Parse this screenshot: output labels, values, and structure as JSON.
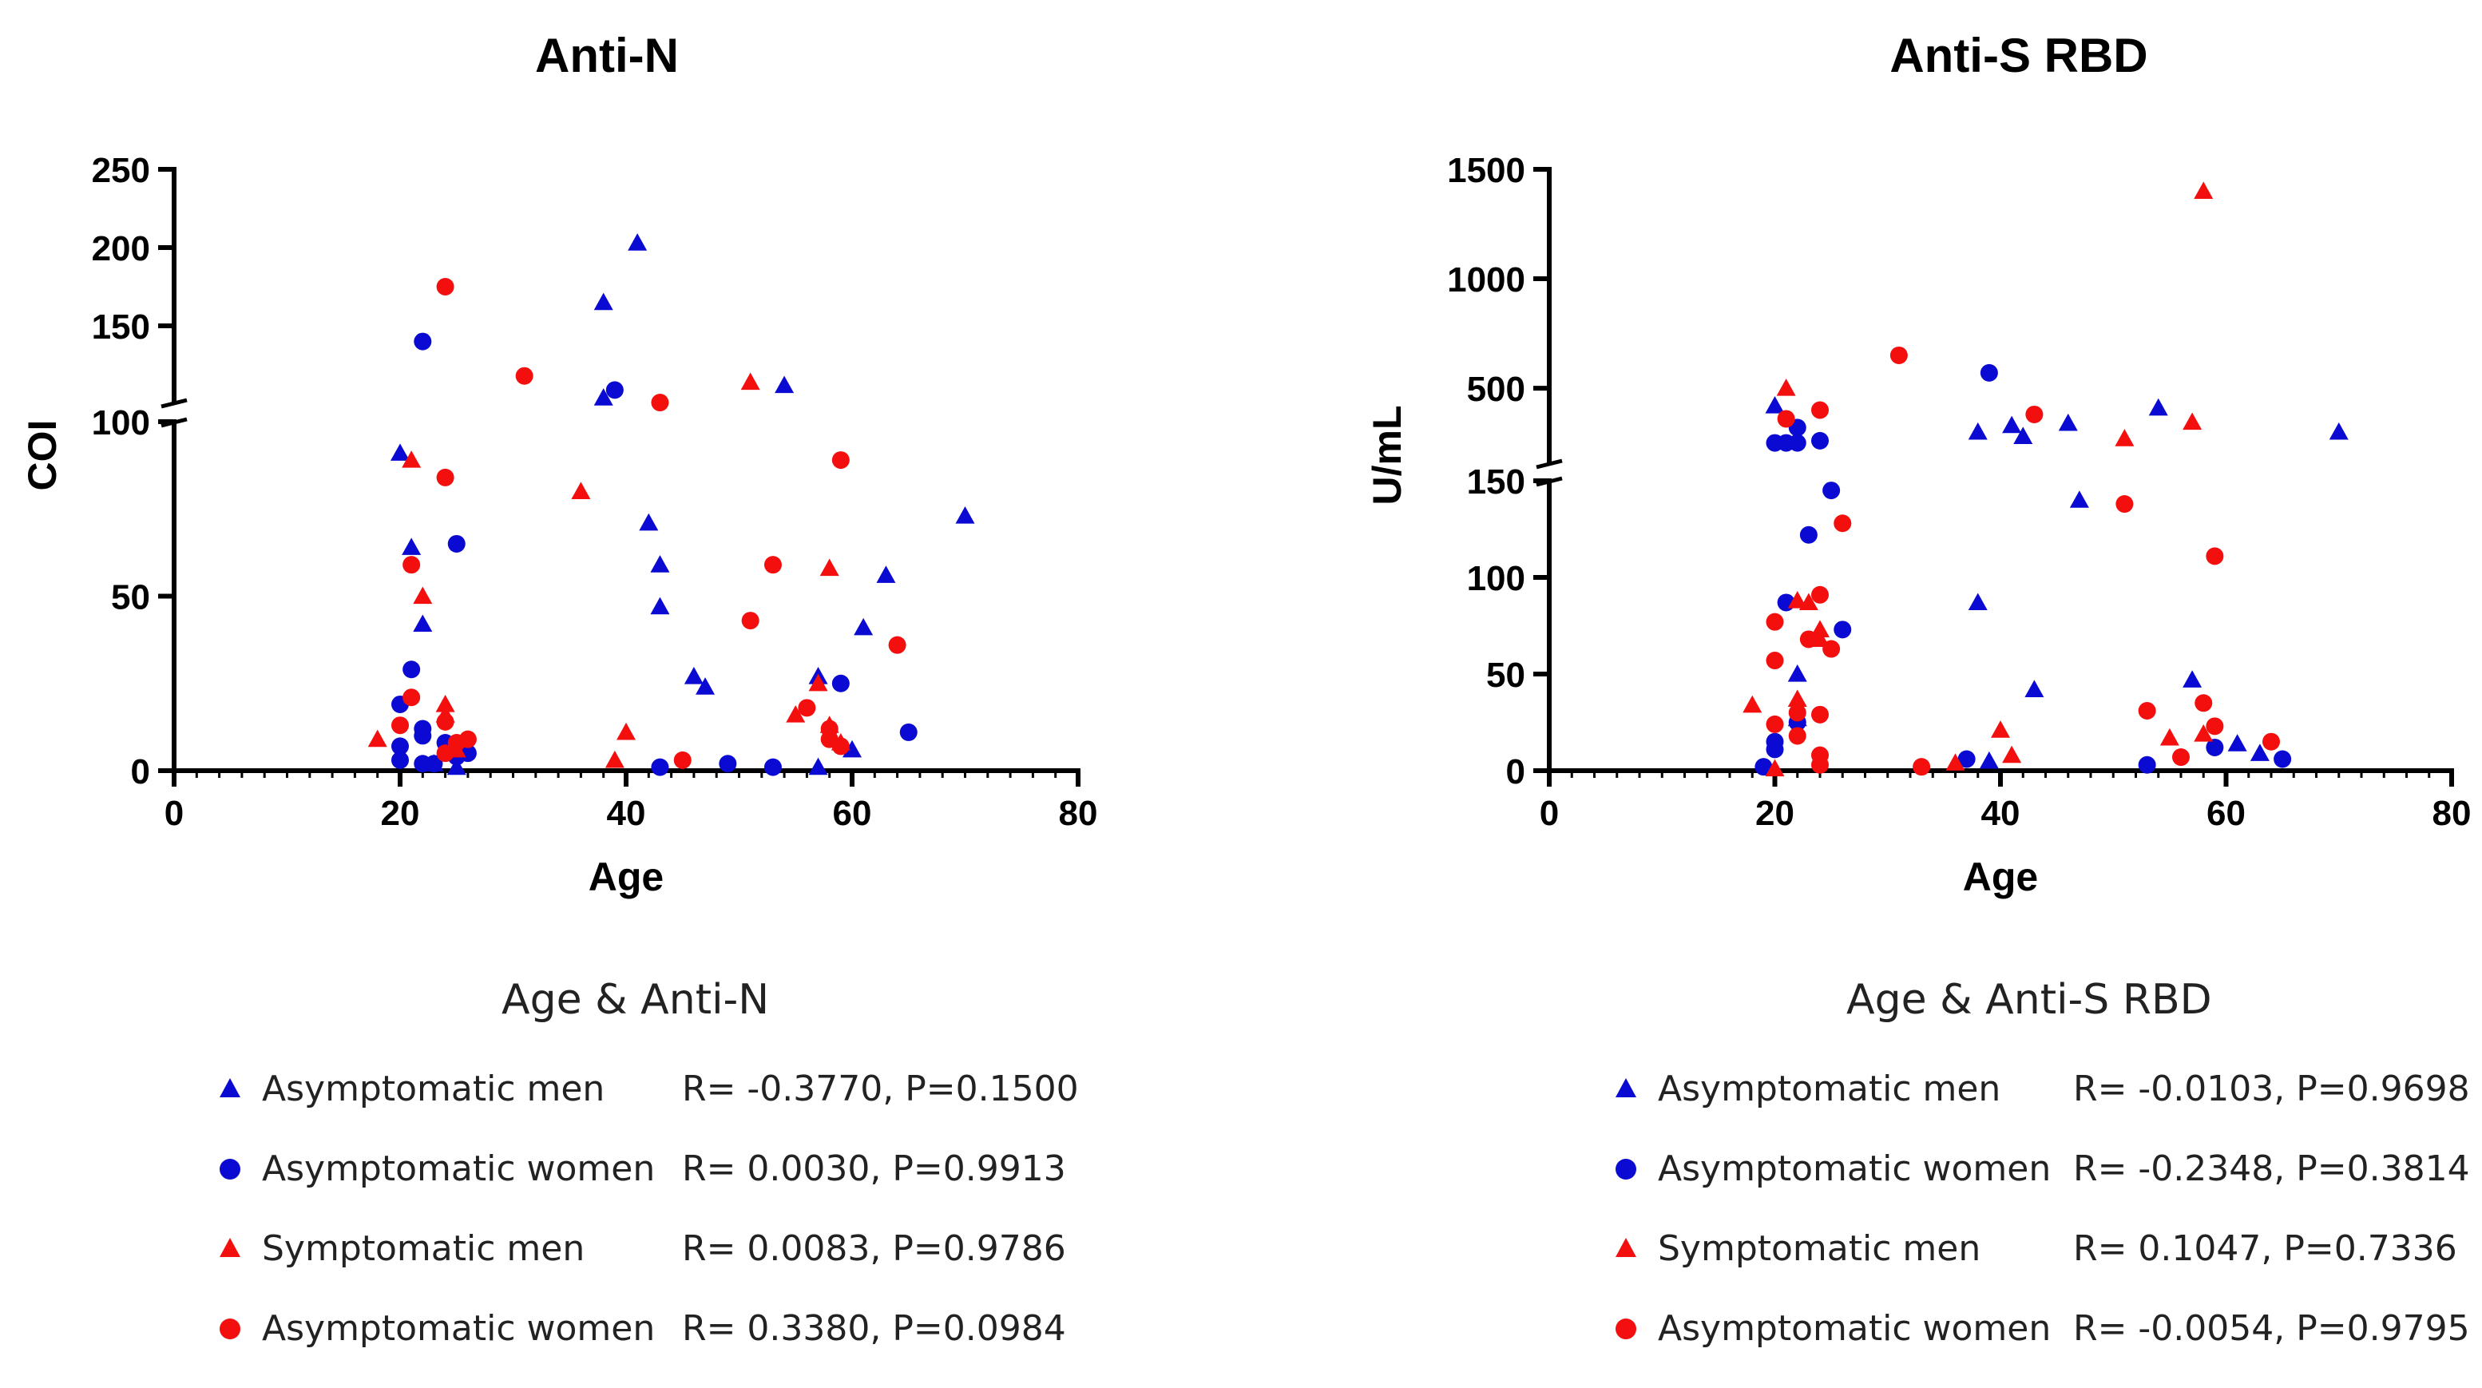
{
  "colors": {
    "blue": "#0a0ad2",
    "red": "#f40f0f",
    "axis": "#000000"
  },
  "chart_data": [
    {
      "type": "scatter",
      "title": "Anti-N",
      "xlabel": "Age",
      "ylabel": "COI",
      "xlim": [
        0,
        80
      ],
      "xticks": [
        "0",
        "20",
        "40",
        "60",
        "80"
      ],
      "y_segments": [
        {
          "range": [
            0,
            100
          ],
          "ticks": [
            "0",
            "50"
          ]
        },
        {
          "range": [
            100,
            250
          ],
          "ticks": [
            "100",
            "150",
            "200",
            "250"
          ]
        }
      ],
      "legend_title": "Age & Anti-N",
      "series": [
        {
          "name": "Asymptomatic men",
          "marker": "triangle",
          "color": "blue",
          "stats": "R= -0.3770, P=0.1500",
          "points": [
            [
              20,
              91
            ],
            [
              21,
              64
            ],
            [
              22,
              42
            ],
            [
              23,
              2
            ],
            [
              25,
              1
            ],
            [
              38,
              165
            ],
            [
              38,
              104
            ],
            [
              41,
              203
            ],
            [
              42,
              71
            ],
            [
              43,
              59
            ],
            [
              43,
              47
            ],
            [
              46,
              27
            ],
            [
              47,
              24
            ],
            [
              54,
              112
            ],
            [
              57,
              27
            ],
            [
              57,
              1
            ],
            [
              60,
              6
            ],
            [
              61,
              41
            ],
            [
              63,
              56
            ],
            [
              70,
              73
            ]
          ]
        },
        {
          "name": "Asymptomatic women",
          "marker": "circle",
          "color": "blue",
          "stats": "R=  0.0030, P=0.9913",
          "points": [
            [
              20,
              19
            ],
            [
              20,
              7
            ],
            [
              20,
              3
            ],
            [
              21,
              29
            ],
            [
              22,
              140
            ],
            [
              22,
              12
            ],
            [
              22,
              10
            ],
            [
              22,
              2
            ],
            [
              23,
              2
            ],
            [
              24,
              8
            ],
            [
              25,
              65
            ],
            [
              25,
              4
            ],
            [
              26,
              5
            ],
            [
              39,
              109
            ],
            [
              43,
              1
            ],
            [
              49,
              2
            ],
            [
              53,
              1
            ],
            [
              59,
              25
            ],
            [
              65,
              11
            ]
          ]
        },
        {
          "name": "Symptomatic men",
          "marker": "triangle",
          "color": "red",
          "stats": "R=  0.0083, P=0.9786",
          "points": [
            [
              18,
              9
            ],
            [
              21,
              89
            ],
            [
              22,
              50
            ],
            [
              24,
              19
            ],
            [
              24,
              16
            ],
            [
              25,
              6
            ],
            [
              36,
              80
            ],
            [
              39,
              3
            ],
            [
              40,
              11
            ],
            [
              51,
              114
            ],
            [
              55,
              16
            ],
            [
              57,
              25
            ],
            [
              58,
              58
            ],
            [
              58,
              13
            ],
            [
              59,
              8
            ]
          ]
        },
        {
          "name": "Asymptomatic women",
          "marker": "circle",
          "color": "red",
          "stats": "R=  0.3380, P=0.0984",
          "points": [
            [
              20,
              13
            ],
            [
              21,
              59
            ],
            [
              21,
              21
            ],
            [
              24,
              175
            ],
            [
              24,
              84
            ],
            [
              24,
              14
            ],
            [
              24,
              5
            ],
            [
              25,
              8
            ],
            [
              26,
              9
            ],
            [
              31,
              118
            ],
            [
              43,
              101
            ],
            [
              45,
              3
            ],
            [
              51,
              43
            ],
            [
              53,
              59
            ],
            [
              56,
              18
            ],
            [
              58,
              12
            ],
            [
              58,
              9
            ],
            [
              59,
              89
            ],
            [
              59,
              7
            ],
            [
              64,
              36
            ]
          ]
        }
      ]
    },
    {
      "type": "scatter",
      "title": "Anti-S RBD",
      "xlabel": "Age",
      "ylabel": "U/mL",
      "xlim": [
        0,
        80
      ],
      "xticks": [
        "0",
        "20",
        "40",
        "60",
        "80"
      ],
      "y_segments": [
        {
          "range": [
            0,
            150
          ],
          "ticks": [
            "0",
            "50",
            "100",
            "150"
          ]
        },
        {
          "range": [
            150,
            1500
          ],
          "ticks": [
            "500",
            "1000",
            "1500"
          ]
        }
      ],
      "legend_title": "Age & Anti-S RBD",
      "series": [
        {
          "name": "Asymptomatic men",
          "marker": "triangle",
          "color": "blue",
          "stats": "R= -0.0103, P=0.9698",
          "points": [
            [
              20,
              420
            ],
            [
              22,
              50
            ],
            [
              22,
              27
            ],
            [
              38,
              87
            ],
            [
              38,
              300
            ],
            [
              39,
              5
            ],
            [
              41,
              330
            ],
            [
              42,
              280
            ],
            [
              43,
              42
            ],
            [
              46,
              340
            ],
            [
              47,
              140
            ],
            [
              54,
              410
            ],
            [
              57,
              47
            ],
            [
              61,
              14
            ],
            [
              63,
              9
            ],
            [
              70,
              300
            ]
          ]
        },
        {
          "name": "Asymptomatic women",
          "marker": "circle",
          "color": "blue",
          "stats": "R= -0.2348, P=0.3814",
          "points": [
            [
              19,
              2
            ],
            [
              20,
              15
            ],
            [
              20,
              11
            ],
            [
              20,
              250
            ],
            [
              21,
              87
            ],
            [
              21,
              250
            ],
            [
              22,
              320
            ],
            [
              22,
              250
            ],
            [
              22,
              25
            ],
            [
              23,
              122
            ],
            [
              24,
              260
            ],
            [
              25,
              145
            ],
            [
              26,
              73
            ],
            [
              37,
              6
            ],
            [
              39,
              570
            ],
            [
              53,
              3
            ],
            [
              59,
              12
            ],
            [
              65,
              6
            ]
          ]
        },
        {
          "name": "Symptomatic men",
          "marker": "triangle",
          "color": "red",
          "stats": "R=  0.1047, P=0.7336",
          "points": [
            [
              18,
              34
            ],
            [
              20,
              1
            ],
            [
              21,
              500
            ],
            [
              22,
              37
            ],
            [
              22,
              88
            ],
            [
              23,
              87
            ],
            [
              24,
              73
            ],
            [
              24,
              68
            ],
            [
              36,
              4
            ],
            [
              40,
              21
            ],
            [
              41,
              8
            ],
            [
              51,
              270
            ],
            [
              55,
              17
            ],
            [
              57,
              345
            ],
            [
              58,
              19
            ],
            [
              58,
              1400
            ]
          ]
        },
        {
          "name": "Asymptomatic women",
          "marker": "circle",
          "color": "red",
          "stats": "R= -0.0054, P=0.9795",
          "points": [
            [
              20,
              57
            ],
            [
              20,
              24
            ],
            [
              20,
              77
            ],
            [
              21,
              360
            ],
            [
              22,
              18
            ],
            [
              22,
              30
            ],
            [
              23,
              68
            ],
            [
              24,
              91
            ],
            [
              24,
              400
            ],
            [
              24,
              29
            ],
            [
              24,
              8
            ],
            [
              24,
              3
            ],
            [
              25,
              63
            ],
            [
              26,
              128
            ],
            [
              31,
              650
            ],
            [
              33,
              2
            ],
            [
              43,
              380
            ],
            [
              51,
              138
            ],
            [
              53,
              31
            ],
            [
              56,
              7
            ],
            [
              58,
              35
            ],
            [
              59,
              111
            ],
            [
              59,
              23
            ],
            [
              64,
              15
            ]
          ]
        }
      ]
    }
  ]
}
